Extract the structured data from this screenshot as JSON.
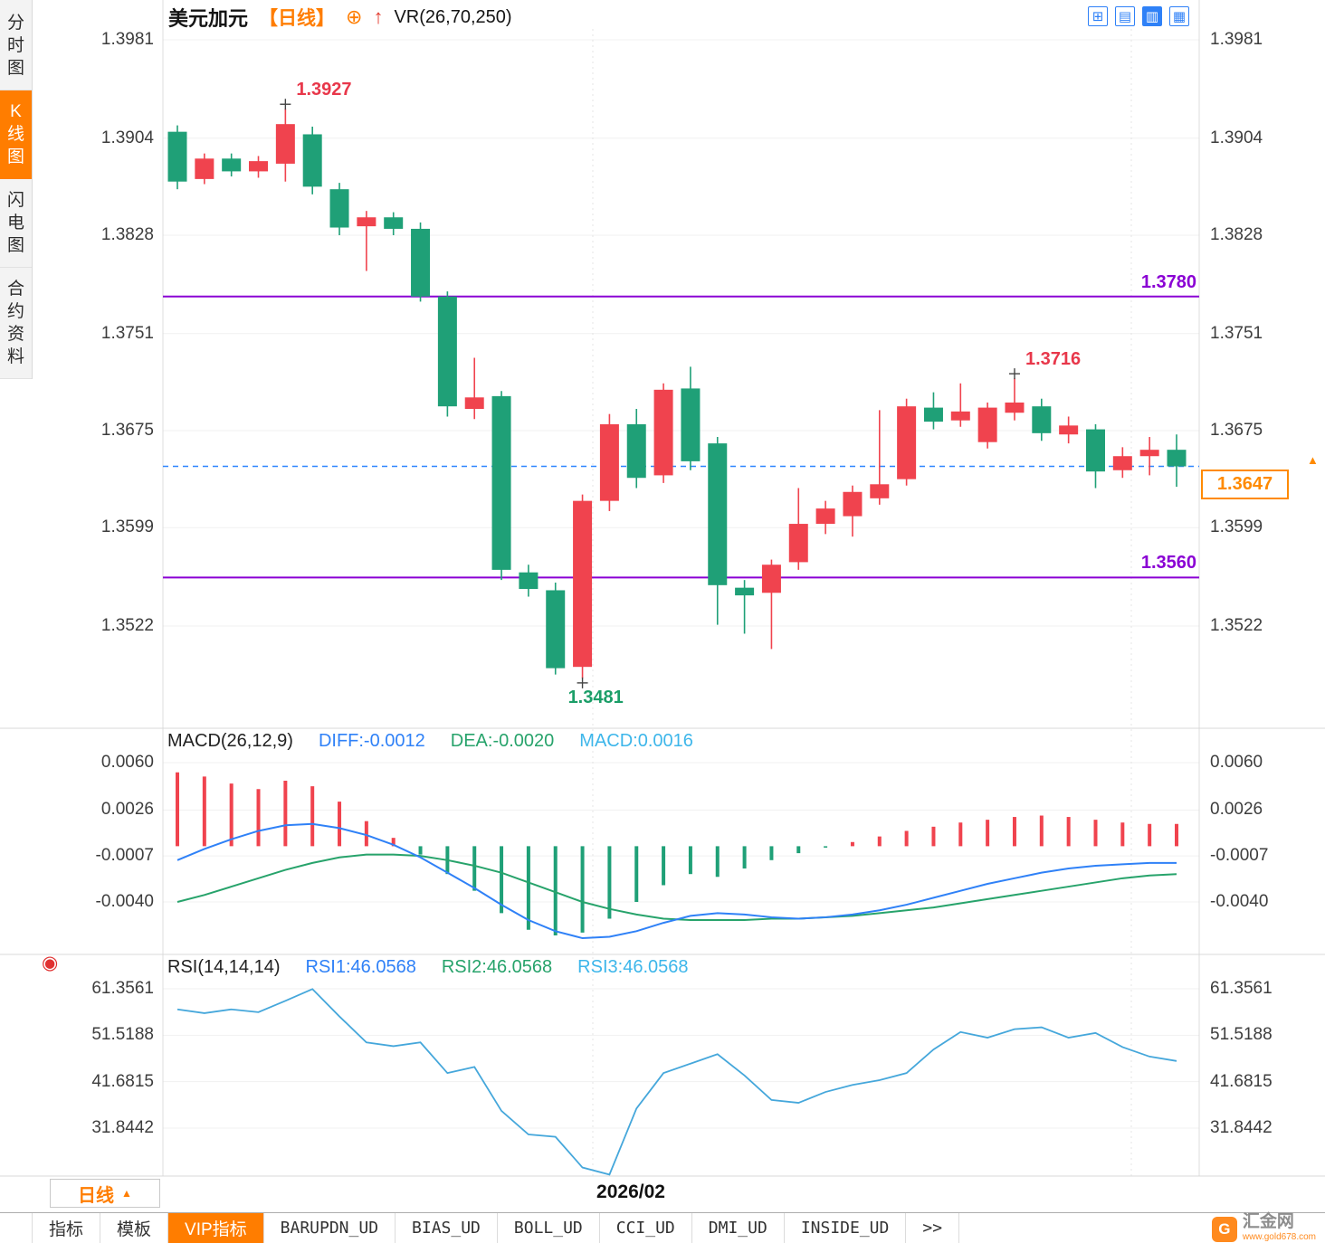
{
  "app": {
    "logo_text": "汇金网",
    "logo_url": "www.gold678.com",
    "logo_glyph": "G"
  },
  "sidebar": {
    "items": [
      {
        "label": "分时图",
        "active": false
      },
      {
        "label": "K线图",
        "active": true
      },
      {
        "label": "闪电图",
        "active": false
      },
      {
        "label": "合约资料",
        "active": false
      }
    ]
  },
  "header": {
    "symbol": "美元加元",
    "period_tag": "【日线】",
    "indicator": "VR(26,70,250)"
  },
  "icons": {
    "add_indicator": "⊕",
    "trend_arrow": "↑",
    "up_triangle": "▲",
    "target": "◉",
    "layout": [
      {
        "name": "layout-quad",
        "glyph": "⊞",
        "active": false
      },
      {
        "name": "layout-rows",
        "glyph": "▤",
        "active": false
      },
      {
        "name": "layout-kline",
        "glyph": "▥",
        "active": true
      },
      {
        "name": "layout-grid",
        "glyph": "▦",
        "active": false
      }
    ]
  },
  "macd_panel": {
    "title": "MACD(26,12,9)",
    "diff": "DIFF:-0.0012",
    "dea": "DEA:-0.0020",
    "macd": "MACD:0.0016"
  },
  "rsi_panel": {
    "title": "RSI(14,14,14)",
    "rsi1": "RSI1:46.0568",
    "rsi2": "RSI2:46.0568",
    "rsi3": "RSI3:46.0568"
  },
  "period_selector": {
    "label": "日线",
    "arrow": "▲"
  },
  "bottom_tabs": {
    "items": [
      {
        "label": "指标",
        "active": false
      },
      {
        "label": "模板",
        "active": false
      },
      {
        "label": "VIP指标",
        "active": true
      },
      {
        "label": "BARUPDN_UD",
        "active": false
      },
      {
        "label": "BIAS_UD",
        "active": false
      },
      {
        "label": "BOLL_UD",
        "active": false
      },
      {
        "label": "CCI_UD",
        "active": false
      },
      {
        "label": "DMI_UD",
        "active": false
      },
      {
        "label": "INSIDE_UD",
        "active": false
      },
      {
        "label": ">>",
        "active": false
      }
    ]
  },
  "colors": {
    "up": "#f0434e",
    "down": "#1fa077",
    "accent": "#ff7d00",
    "purple": "#8a00d4",
    "price_line": "#2e86ff",
    "diff": "#2f81f7",
    "dea": "#27a36b",
    "cyan": "#3db6ea",
    "rsi": "#45a7db"
  },
  "chart_data": [
    {
      "type": "candlestick",
      "title": "美元加元 日线",
      "y_ticks": [
        "1.3981",
        "1.3904",
        "1.3828",
        "1.3751",
        "1.3675",
        "1.3599",
        "1.3522"
      ],
      "x_ticks": [
        "2026/02"
      ],
      "ohlc": [
        [
          1.3909,
          1.3914,
          1.3864,
          1.387
        ],
        [
          1.3872,
          1.3892,
          1.3868,
          1.3888
        ],
        [
          1.3888,
          1.3892,
          1.3874,
          1.3878
        ],
        [
          1.3878,
          1.389,
          1.3873,
          1.3886
        ],
        [
          1.3884,
          1.3927,
          1.387,
          1.3915
        ],
        [
          1.3907,
          1.3913,
          1.386,
          1.3866
        ],
        [
          1.3864,
          1.3869,
          1.3828,
          1.3834
        ],
        [
          1.3835,
          1.3847,
          1.38,
          1.3842
        ],
        [
          1.3842,
          1.3846,
          1.3828,
          1.3833
        ],
        [
          1.3833,
          1.3838,
          1.3776,
          1.378
        ],
        [
          1.378,
          1.3784,
          1.3686,
          1.3694
        ],
        [
          1.3692,
          1.3732,
          1.3684,
          1.3701
        ],
        [
          1.3702,
          1.3706,
          1.3558,
          1.3566
        ],
        [
          1.3564,
          1.357,
          1.3545,
          1.3551
        ],
        [
          1.355,
          1.3556,
          1.3484,
          1.3489
        ],
        [
          1.349,
          1.3625,
          1.3481,
          1.362
        ],
        [
          1.362,
          1.3688,
          1.3612,
          1.368
        ],
        [
          1.368,
          1.3692,
          1.363,
          1.3638
        ],
        [
          1.364,
          1.3712,
          1.3634,
          1.3707
        ],
        [
          1.3708,
          1.3725,
          1.3644,
          1.3651
        ],
        [
          1.3665,
          1.367,
          1.3523,
          1.3554
        ],
        [
          1.3552,
          1.3558,
          1.3516,
          1.3546
        ],
        [
          1.3548,
          1.3574,
          1.3504,
          1.357
        ],
        [
          1.3572,
          1.363,
          1.3566,
          1.3602
        ],
        [
          1.3602,
          1.362,
          1.3594,
          1.3614
        ],
        [
          1.3608,
          1.3632,
          1.3592,
          1.3627
        ],
        [
          1.3622,
          1.3691,
          1.3617,
          1.3633
        ],
        [
          1.3637,
          1.37,
          1.3632,
          1.3694
        ],
        [
          1.3693,
          1.3705,
          1.3676,
          1.3682
        ],
        [
          1.3683,
          1.3712,
          1.3678,
          1.369
        ],
        [
          1.3666,
          1.3697,
          1.3661,
          1.3693
        ],
        [
          1.3689,
          1.3716,
          1.3683,
          1.3697
        ],
        [
          1.3694,
          1.37,
          1.3667,
          1.3673
        ],
        [
          1.3672,
          1.3686,
          1.3665,
          1.3679
        ],
        [
          1.3676,
          1.368,
          1.363,
          1.3643
        ],
        [
          1.3644,
          1.3662,
          1.3638,
          1.3655
        ],
        [
          1.3655,
          1.367,
          1.364,
          1.366
        ],
        [
          1.366,
          1.3672,
          1.3631,
          1.3647
        ]
      ],
      "hlines": [
        {
          "price": 1.378,
          "label": "1.3780"
        },
        {
          "price": 1.356,
          "label": "1.3560"
        }
      ],
      "annotations": [
        {
          "label": "1.3927",
          "index": 4,
          "price": 1.3927,
          "placement": "above"
        },
        {
          "label": "1.3481",
          "index": 15,
          "price": 1.3481,
          "placement": "below"
        },
        {
          "label": "1.3716",
          "index": 31,
          "price": 1.3716,
          "placement": "above"
        }
      ],
      "current_price": 1.3647,
      "current_price_label": "1.3647"
    },
    {
      "type": "bar",
      "name": "MACD",
      "y_ticks": [
        "0.0060",
        "0.0026",
        "-0.0007",
        "-0.0040"
      ],
      "histogram": [
        0.0053,
        0.005,
        0.0045,
        0.0041,
        0.0047,
        0.0043,
        0.0032,
        0.0018,
        0.0006,
        -0.0006,
        -0.002,
        -0.0032,
        -0.0048,
        -0.006,
        -0.0064,
        -0.0062,
        -0.0052,
        -0.004,
        -0.0028,
        -0.002,
        -0.0022,
        -0.0016,
        -0.001,
        -0.0005,
        -0.0001,
        0.0003,
        0.0007,
        0.0011,
        0.0014,
        0.0017,
        0.0019,
        0.0021,
        0.0022,
        0.0021,
        0.0019,
        0.0017,
        0.0016,
        0.0016
      ],
      "diff": [
        -0.001,
        -0.0002,
        0.0005,
        0.0011,
        0.0015,
        0.0016,
        0.0013,
        0.0008,
        0.0001,
        -0.0008,
        -0.0019,
        -0.003,
        -0.0042,
        -0.0053,
        -0.0061,
        -0.0066,
        -0.0065,
        -0.0061,
        -0.0055,
        -0.005,
        -0.0048,
        -0.0049,
        -0.0051,
        -0.0052,
        -0.0051,
        -0.0049,
        -0.0046,
        -0.0042,
        -0.0037,
        -0.0032,
        -0.0027,
        -0.0023,
        -0.0019,
        -0.0016,
        -0.0014,
        -0.0013,
        -0.0012,
        -0.0012
      ],
      "dea": [
        -0.004,
        -0.0035,
        -0.0029,
        -0.0023,
        -0.0017,
        -0.0012,
        -0.0008,
        -0.0006,
        -0.0006,
        -0.0007,
        -0.001,
        -0.0014,
        -0.0019,
        -0.0026,
        -0.0033,
        -0.004,
        -0.0045,
        -0.0049,
        -0.0052,
        -0.0053,
        -0.0053,
        -0.0053,
        -0.0052,
        -0.0052,
        -0.0051,
        -0.005,
        -0.0048,
        -0.0046,
        -0.0044,
        -0.0041,
        -0.0038,
        -0.0035,
        -0.0032,
        -0.0029,
        -0.0026,
        -0.0023,
        -0.0021,
        -0.002
      ]
    },
    {
      "type": "line",
      "name": "RSI",
      "y_ticks": [
        "61.3561",
        "51.5188",
        "41.6815",
        "31.8442"
      ],
      "rsi": [
        57.0,
        56.2,
        57.0,
        56.4,
        58.8,
        61.3,
        55.5,
        50.0,
        49.2,
        50.0,
        43.5,
        44.8,
        35.5,
        30.5,
        30.0,
        23.5,
        22.0,
        36.0,
        43.5,
        45.5,
        47.5,
        43.0,
        37.8,
        37.2,
        39.5,
        41.0,
        42.0,
        43.5,
        48.5,
        52.2,
        51.0,
        52.8,
        53.2,
        51.0,
        52.0,
        49.0,
        47.0,
        46.06
      ]
    }
  ]
}
